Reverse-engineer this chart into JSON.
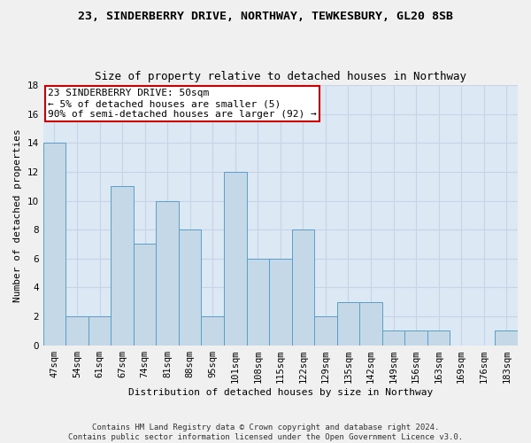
{
  "title": "23, SINDERBERRY DRIVE, NORTHWAY, TEWKESBURY, GL20 8SB",
  "subtitle": "Size of property relative to detached houses in Northway",
  "xlabel": "Distribution of detached houses by size in Northway",
  "ylabel": "Number of detached properties",
  "categories": [
    "47sqm",
    "54sqm",
    "61sqm",
    "67sqm",
    "74sqm",
    "81sqm",
    "88sqm",
    "95sqm",
    "101sqm",
    "108sqm",
    "115sqm",
    "122sqm",
    "129sqm",
    "135sqm",
    "142sqm",
    "149sqm",
    "156sqm",
    "163sqm",
    "169sqm",
    "176sqm",
    "183sqm"
  ],
  "values": [
    14,
    2,
    2,
    11,
    7,
    10,
    8,
    2,
    12,
    6,
    6,
    8,
    2,
    3,
    3,
    1,
    1,
    1,
    0,
    0,
    1
  ],
  "bar_color": "#c5d8e8",
  "bar_edge_color": "#5a9ec8",
  "annotation_box_text": "23 SINDERBERRY DRIVE: 50sqm\n← 5% of detached houses are smaller (5)\n90% of semi-detached houses are larger (92) →",
  "annotation_box_color": "#ffffff",
  "annotation_box_edge_color": "#cc0000",
  "ylim": [
    0,
    18
  ],
  "yticks": [
    0,
    2,
    4,
    6,
    8,
    10,
    12,
    14,
    16,
    18
  ],
  "grid_color": "#c8d4e4",
  "bg_color": "#dce8f4",
  "fig_bg_color": "#f0f0f0",
  "footer_line1": "Contains HM Land Registry data © Crown copyright and database right 2024.",
  "footer_line2": "Contains public sector information licensed under the Open Government Licence v3.0.",
  "title_fontsize": 9.5,
  "subtitle_fontsize": 9,
  "axis_label_fontsize": 8,
  "tick_fontsize": 7.5,
  "footer_fontsize": 6.5,
  "annotation_fontsize": 8
}
